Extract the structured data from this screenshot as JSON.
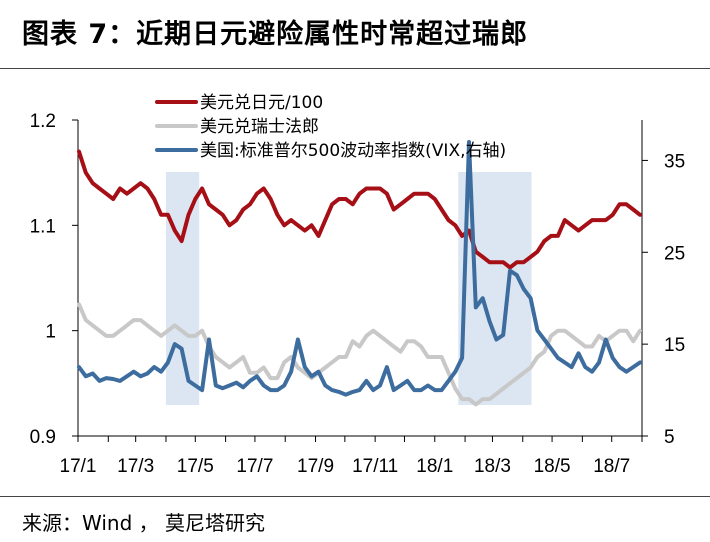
{
  "page": {
    "title": "图表 7：近期日元避险属性时常超过瑞郎",
    "source": "来源：Wind ， 莫尼塔研究"
  },
  "chart_data": {
    "type": "line",
    "title": "",
    "x_ticks": [
      "17/1",
      "17/3",
      "17/5",
      "17/7",
      "17/9",
      "17/11",
      "18/1",
      "18/3",
      "18/5",
      "18/7"
    ],
    "x_range": [
      "2017-01",
      "2018-08"
    ],
    "y_left": {
      "ticks": [
        "0.9",
        "1",
        "1.1",
        "1.2"
      ],
      "range": [
        0.9,
        1.2
      ]
    },
    "y_right": {
      "ticks": [
        "5",
        "15",
        "25",
        "35"
      ],
      "range": [
        5,
        39.4
      ]
    },
    "shaded_periods": [
      [
        "2017-04-01",
        "2017-05-05"
      ],
      [
        "2018-01-25",
        "2018-04-10"
      ]
    ],
    "grid": false,
    "legend_position": "top-center",
    "colors": {
      "usdjpy": "#a50f15",
      "usdchf": "#c8c8c8",
      "vix": "#3d6c9e",
      "shade": "#dce6f2"
    },
    "series": [
      {
        "name": "美元兑日元/100",
        "axis": "left",
        "points": [
          [
            "2017-01-02",
            1.17
          ],
          [
            "2017-01-09",
            1.15
          ],
          [
            "2017-01-16",
            1.14
          ],
          [
            "2017-01-23",
            1.135
          ],
          [
            "2017-01-30",
            1.13
          ],
          [
            "2017-02-06",
            1.125
          ],
          [
            "2017-02-13",
            1.135
          ],
          [
            "2017-02-20",
            1.13
          ],
          [
            "2017-02-27",
            1.135
          ],
          [
            "2017-03-06",
            1.14
          ],
          [
            "2017-03-13",
            1.135
          ],
          [
            "2017-03-20",
            1.125
          ],
          [
            "2017-03-27",
            1.11
          ],
          [
            "2017-04-03",
            1.11
          ],
          [
            "2017-04-10",
            1.095
          ],
          [
            "2017-04-17",
            1.085
          ],
          [
            "2017-04-24",
            1.11
          ],
          [
            "2017-05-01",
            1.125
          ],
          [
            "2017-05-08",
            1.135
          ],
          [
            "2017-05-15",
            1.12
          ],
          [
            "2017-05-22",
            1.115
          ],
          [
            "2017-05-29",
            1.11
          ],
          [
            "2017-06-05",
            1.1
          ],
          [
            "2017-06-12",
            1.105
          ],
          [
            "2017-06-19",
            1.115
          ],
          [
            "2017-06-26",
            1.12
          ],
          [
            "2017-07-03",
            1.13
          ],
          [
            "2017-07-10",
            1.135
          ],
          [
            "2017-07-17",
            1.125
          ],
          [
            "2017-07-24",
            1.11
          ],
          [
            "2017-07-31",
            1.1
          ],
          [
            "2017-08-07",
            1.105
          ],
          [
            "2017-08-14",
            1.1
          ],
          [
            "2017-08-21",
            1.095
          ],
          [
            "2017-08-28",
            1.1
          ],
          [
            "2017-09-04",
            1.09
          ],
          [
            "2017-09-11",
            1.105
          ],
          [
            "2017-09-18",
            1.12
          ],
          [
            "2017-09-25",
            1.125
          ],
          [
            "2017-10-02",
            1.125
          ],
          [
            "2017-10-09",
            1.12
          ],
          [
            "2017-10-16",
            1.13
          ],
          [
            "2017-10-23",
            1.135
          ],
          [
            "2017-10-30",
            1.135
          ],
          [
            "2017-11-06",
            1.135
          ],
          [
            "2017-11-13",
            1.13
          ],
          [
            "2017-11-20",
            1.115
          ],
          [
            "2017-11-27",
            1.12
          ],
          [
            "2017-12-04",
            1.125
          ],
          [
            "2017-12-11",
            1.13
          ],
          [
            "2017-12-18",
            1.13
          ],
          [
            "2017-12-25",
            1.13
          ],
          [
            "2018-01-01",
            1.125
          ],
          [
            "2018-01-08",
            1.115
          ],
          [
            "2018-01-15",
            1.105
          ],
          [
            "2018-01-22",
            1.1
          ],
          [
            "2018-01-29",
            1.09
          ],
          [
            "2018-02-05",
            1.095
          ],
          [
            "2018-02-12",
            1.075
          ],
          [
            "2018-02-19",
            1.07
          ],
          [
            "2018-02-26",
            1.065
          ],
          [
            "2018-03-05",
            1.065
          ],
          [
            "2018-03-12",
            1.065
          ],
          [
            "2018-03-19",
            1.06
          ],
          [
            "2018-03-26",
            1.065
          ],
          [
            "2018-04-02",
            1.065
          ],
          [
            "2018-04-09",
            1.07
          ],
          [
            "2018-04-16",
            1.075
          ],
          [
            "2018-04-23",
            1.085
          ],
          [
            "2018-04-30",
            1.09
          ],
          [
            "2018-05-07",
            1.09
          ],
          [
            "2018-05-14",
            1.105
          ],
          [
            "2018-05-21",
            1.1
          ],
          [
            "2018-05-28",
            1.095
          ],
          [
            "2018-06-04",
            1.1
          ],
          [
            "2018-06-11",
            1.105
          ],
          [
            "2018-06-18",
            1.105
          ],
          [
            "2018-06-25",
            1.105
          ],
          [
            "2018-07-02",
            1.11
          ],
          [
            "2018-07-09",
            1.12
          ],
          [
            "2018-07-16",
            1.12
          ],
          [
            "2018-07-23",
            1.115
          ],
          [
            "2018-07-30",
            1.11
          ]
        ]
      },
      {
        "name": "美元兑瑞士法郎",
        "axis": "left",
        "points": [
          [
            "2017-01-02",
            1.025
          ],
          [
            "2017-01-09",
            1.01
          ],
          [
            "2017-01-16",
            1.005
          ],
          [
            "2017-01-23",
            1.0
          ],
          [
            "2017-01-30",
            0.995
          ],
          [
            "2017-02-06",
            0.995
          ],
          [
            "2017-02-13",
            1.0
          ],
          [
            "2017-02-20",
            1.005
          ],
          [
            "2017-02-27",
            1.01
          ],
          [
            "2017-03-06",
            1.01
          ],
          [
            "2017-03-13",
            1.005
          ],
          [
            "2017-03-20",
            1.0
          ],
          [
            "2017-03-27",
            0.995
          ],
          [
            "2017-04-03",
            1.0
          ],
          [
            "2017-04-10",
            1.005
          ],
          [
            "2017-04-17",
            1.0
          ],
          [
            "2017-04-24",
            0.995
          ],
          [
            "2017-05-01",
            0.995
          ],
          [
            "2017-05-08",
            1.0
          ],
          [
            "2017-05-15",
            0.985
          ],
          [
            "2017-05-22",
            0.975
          ],
          [
            "2017-05-29",
            0.97
          ],
          [
            "2017-06-05",
            0.965
          ],
          [
            "2017-06-12",
            0.97
          ],
          [
            "2017-06-19",
            0.975
          ],
          [
            "2017-06-26",
            0.96
          ],
          [
            "2017-07-03",
            0.96
          ],
          [
            "2017-07-10",
            0.965
          ],
          [
            "2017-07-17",
            0.955
          ],
          [
            "2017-07-24",
            0.955
          ],
          [
            "2017-07-31",
            0.97
          ],
          [
            "2017-08-07",
            0.975
          ],
          [
            "2017-08-14",
            0.965
          ],
          [
            "2017-08-21",
            0.96
          ],
          [
            "2017-08-28",
            0.955
          ],
          [
            "2017-09-04",
            0.96
          ],
          [
            "2017-09-11",
            0.965
          ],
          [
            "2017-09-18",
            0.97
          ],
          [
            "2017-09-25",
            0.975
          ],
          [
            "2017-10-02",
            0.975
          ],
          [
            "2017-10-09",
            0.99
          ],
          [
            "2017-10-16",
            0.985
          ],
          [
            "2017-10-23",
            0.995
          ],
          [
            "2017-10-30",
            1.0
          ],
          [
            "2017-11-06",
            0.995
          ],
          [
            "2017-11-13",
            0.99
          ],
          [
            "2017-11-20",
            0.985
          ],
          [
            "2017-11-27",
            0.98
          ],
          [
            "2017-12-04",
            0.99
          ],
          [
            "2017-12-11",
            0.99
          ],
          [
            "2017-12-18",
            0.985
          ],
          [
            "2017-12-25",
            0.975
          ],
          [
            "2018-01-01",
            0.975
          ],
          [
            "2018-01-08",
            0.975
          ],
          [
            "2018-01-15",
            0.96
          ],
          [
            "2018-01-22",
            0.945
          ],
          [
            "2018-01-29",
            0.935
          ],
          [
            "2018-02-05",
            0.935
          ],
          [
            "2018-02-12",
            0.93
          ],
          [
            "2018-02-19",
            0.935
          ],
          [
            "2018-02-26",
            0.935
          ],
          [
            "2018-03-05",
            0.94
          ],
          [
            "2018-03-12",
            0.945
          ],
          [
            "2018-03-19",
            0.95
          ],
          [
            "2018-03-26",
            0.955
          ],
          [
            "2018-04-02",
            0.96
          ],
          [
            "2018-04-09",
            0.965
          ],
          [
            "2018-04-16",
            0.975
          ],
          [
            "2018-04-23",
            0.98
          ],
          [
            "2018-04-30",
            0.995
          ],
          [
            "2018-05-07",
            1.0
          ],
          [
            "2018-05-14",
            1.0
          ],
          [
            "2018-05-21",
            0.995
          ],
          [
            "2018-05-28",
            0.99
          ],
          [
            "2018-06-04",
            0.985
          ],
          [
            "2018-06-11",
            0.985
          ],
          [
            "2018-06-18",
            0.995
          ],
          [
            "2018-06-25",
            0.99
          ],
          [
            "2018-07-02",
            0.995
          ],
          [
            "2018-07-09",
            1.0
          ],
          [
            "2018-07-16",
            1.0
          ],
          [
            "2018-07-23",
            0.99
          ],
          [
            "2018-07-30",
            1.0
          ]
        ]
      },
      {
        "name": "美国:标准普尔500波动率指数(VIX,右轴)",
        "axis": "right",
        "points": [
          [
            "2017-01-02",
            12.5
          ],
          [
            "2017-01-09",
            11.5
          ],
          [
            "2017-01-16",
            11.8
          ],
          [
            "2017-01-23",
            11.0
          ],
          [
            "2017-01-30",
            11.3
          ],
          [
            "2017-02-06",
            11.2
          ],
          [
            "2017-02-13",
            11.0
          ],
          [
            "2017-02-20",
            11.5
          ],
          [
            "2017-02-27",
            12.0
          ],
          [
            "2017-03-06",
            11.5
          ],
          [
            "2017-03-13",
            11.8
          ],
          [
            "2017-03-20",
            12.5
          ],
          [
            "2017-03-27",
            12.0
          ],
          [
            "2017-04-03",
            13.0
          ],
          [
            "2017-04-10",
            15.0
          ],
          [
            "2017-04-17",
            14.5
          ],
          [
            "2017-04-24",
            11.0
          ],
          [
            "2017-05-01",
            10.5
          ],
          [
            "2017-05-08",
            10.0
          ],
          [
            "2017-05-15",
            15.5
          ],
          [
            "2017-05-22",
            10.5
          ],
          [
            "2017-05-29",
            10.2
          ],
          [
            "2017-06-05",
            10.5
          ],
          [
            "2017-06-12",
            10.8
          ],
          [
            "2017-06-19",
            10.3
          ],
          [
            "2017-06-26",
            11.0
          ],
          [
            "2017-07-03",
            11.5
          ],
          [
            "2017-07-10",
            10.5
          ],
          [
            "2017-07-17",
            10.0
          ],
          [
            "2017-07-24",
            10.0
          ],
          [
            "2017-07-31",
            10.5
          ],
          [
            "2017-08-07",
            12.0
          ],
          [
            "2017-08-14",
            15.5
          ],
          [
            "2017-08-21",
            12.5
          ],
          [
            "2017-08-28",
            11.5
          ],
          [
            "2017-09-04",
            12.0
          ],
          [
            "2017-09-11",
            10.5
          ],
          [
            "2017-09-18",
            10.0
          ],
          [
            "2017-09-25",
            9.8
          ],
          [
            "2017-10-02",
            9.5
          ],
          [
            "2017-10-09",
            9.8
          ],
          [
            "2017-10-16",
            10.0
          ],
          [
            "2017-10-23",
            11.0
          ],
          [
            "2017-10-30",
            10.0
          ],
          [
            "2017-11-06",
            10.5
          ],
          [
            "2017-11-13",
            12.5
          ],
          [
            "2017-11-20",
            10.0
          ],
          [
            "2017-11-27",
            10.5
          ],
          [
            "2017-12-04",
            11.0
          ],
          [
            "2017-12-11",
            10.0
          ],
          [
            "2017-12-18",
            10.0
          ],
          [
            "2017-12-25",
            10.5
          ],
          [
            "2018-01-01",
            10.0
          ],
          [
            "2018-01-08",
            10.0
          ],
          [
            "2018-01-15",
            11.0
          ],
          [
            "2018-01-22",
            12.0
          ],
          [
            "2018-01-29",
            13.5
          ],
          [
            "2018-02-05",
            37.0
          ],
          [
            "2018-02-12",
            19.0
          ],
          [
            "2018-02-19",
            20.0
          ],
          [
            "2018-02-26",
            17.5
          ],
          [
            "2018-03-05",
            15.5
          ],
          [
            "2018-03-12",
            16.0
          ],
          [
            "2018-03-19",
            23.0
          ],
          [
            "2018-03-26",
            22.5
          ],
          [
            "2018-04-02",
            21.0
          ],
          [
            "2018-04-09",
            20.0
          ],
          [
            "2018-04-16",
            16.5
          ],
          [
            "2018-04-23",
            15.5
          ],
          [
            "2018-04-30",
            14.5
          ],
          [
            "2018-05-07",
            13.5
          ],
          [
            "2018-05-14",
            13.0
          ],
          [
            "2018-05-21",
            12.5
          ],
          [
            "2018-05-28",
            14.0
          ],
          [
            "2018-06-04",
            12.5
          ],
          [
            "2018-06-11",
            12.0
          ],
          [
            "2018-06-18",
            13.0
          ],
          [
            "2018-06-25",
            15.5
          ],
          [
            "2018-07-02",
            13.5
          ],
          [
            "2018-07-09",
            12.5
          ],
          [
            "2018-07-16",
            12.0
          ],
          [
            "2018-07-23",
            12.5
          ],
          [
            "2018-07-30",
            13.0
          ]
        ]
      }
    ]
  }
}
